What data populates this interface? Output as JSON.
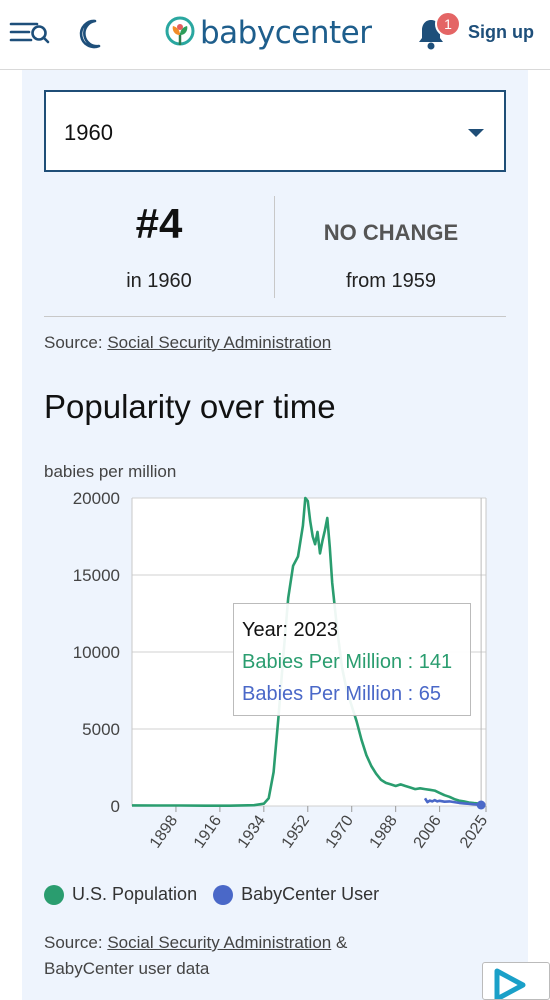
{
  "header": {
    "logo_text": "babycenter",
    "notification_count": "1",
    "signup_label": "Sign up"
  },
  "year_select": {
    "value": "1960"
  },
  "stats": {
    "rank": "#4",
    "rank_sub": "in 1960",
    "change": "NO CHANGE",
    "change_sub": "from 1959"
  },
  "source_top": {
    "prefix": "Source: ",
    "link": "Social Security Administration"
  },
  "popularity": {
    "title": "Popularity over time",
    "unit_label": "babies per million"
  },
  "tooltip": {
    "year": "Year: 2023",
    "us_line": "Babies Per Million : 141",
    "bc_line": "Babies Per Million : 65"
  },
  "legend": {
    "us": "U.S. Population",
    "bc": "BabyCenter User"
  },
  "source_bottom": {
    "prefix": "Source: ",
    "link": "Social Security Administration",
    "suffix": " &",
    "line2": "BabyCenter user data"
  },
  "colors": {
    "us": "#2a9d6f",
    "bc": "#4a68c8",
    "brand": "#1e5e8c"
  },
  "chart_data": {
    "type": "line",
    "ylabel": "babies per million",
    "ylim": [
      0,
      20000
    ],
    "yticks": [
      0,
      5000,
      10000,
      15000,
      20000
    ],
    "xlim": [
      1880,
      2025
    ],
    "xticks": [
      1898,
      1916,
      1934,
      1952,
      1970,
      1988,
      2006,
      2025
    ],
    "grid": true,
    "legend": "bottom",
    "series": [
      {
        "name": "U.S. Population",
        "points": [
          [
            1880,
            40
          ],
          [
            1890,
            30
          ],
          [
            1900,
            30
          ],
          [
            1910,
            20
          ],
          [
            1920,
            20
          ],
          [
            1930,
            50
          ],
          [
            1934,
            150
          ],
          [
            1936,
            500
          ],
          [
            1938,
            2200
          ],
          [
            1940,
            5800
          ],
          [
            1942,
            9800
          ],
          [
            1944,
            13500
          ],
          [
            1946,
            15600
          ],
          [
            1948,
            16200
          ],
          [
            1950,
            18200
          ],
          [
            1951,
            20000
          ],
          [
            1952,
            19800
          ],
          [
            1953,
            18500
          ],
          [
            1954,
            17500
          ],
          [
            1955,
            17000
          ],
          [
            1956,
            17800
          ],
          [
            1957,
            16400
          ],
          [
            1958,
            17200
          ],
          [
            1959,
            17900
          ],
          [
            1960,
            18700
          ],
          [
            1961,
            16800
          ],
          [
            1962,
            14500
          ],
          [
            1964,
            11500
          ],
          [
            1966,
            9000
          ],
          [
            1968,
            7500
          ],
          [
            1970,
            6500
          ],
          [
            1972,
            5500
          ],
          [
            1974,
            4300
          ],
          [
            1976,
            3300
          ],
          [
            1978,
            2600
          ],
          [
            1980,
            2100
          ],
          [
            1982,
            1700
          ],
          [
            1984,
            1500
          ],
          [
            1986,
            1400
          ],
          [
            1988,
            1300
          ],
          [
            1990,
            1400
          ],
          [
            1992,
            1300
          ],
          [
            1994,
            1200
          ],
          [
            1996,
            1100
          ],
          [
            1998,
            1150
          ],
          [
            2000,
            1100
          ],
          [
            2002,
            1050
          ],
          [
            2004,
            1000
          ],
          [
            2006,
            850
          ],
          [
            2008,
            700
          ],
          [
            2010,
            600
          ],
          [
            2012,
            450
          ],
          [
            2014,
            350
          ],
          [
            2016,
            300
          ],
          [
            2018,
            230
          ],
          [
            2020,
            190
          ],
          [
            2022,
            160
          ],
          [
            2023,
            141
          ]
        ]
      },
      {
        "name": "BabyCenter User",
        "points": [
          [
            2000,
            500
          ],
          [
            2001,
            250
          ],
          [
            2002,
            350
          ],
          [
            2003,
            300
          ],
          [
            2004,
            380
          ],
          [
            2005,
            300
          ],
          [
            2006,
            340
          ],
          [
            2008,
            280
          ],
          [
            2010,
            300
          ],
          [
            2012,
            250
          ],
          [
            2014,
            200
          ],
          [
            2016,
            170
          ],
          [
            2018,
            140
          ],
          [
            2020,
            110
          ],
          [
            2022,
            85
          ],
          [
            2023,
            65
          ]
        ]
      }
    ]
  }
}
